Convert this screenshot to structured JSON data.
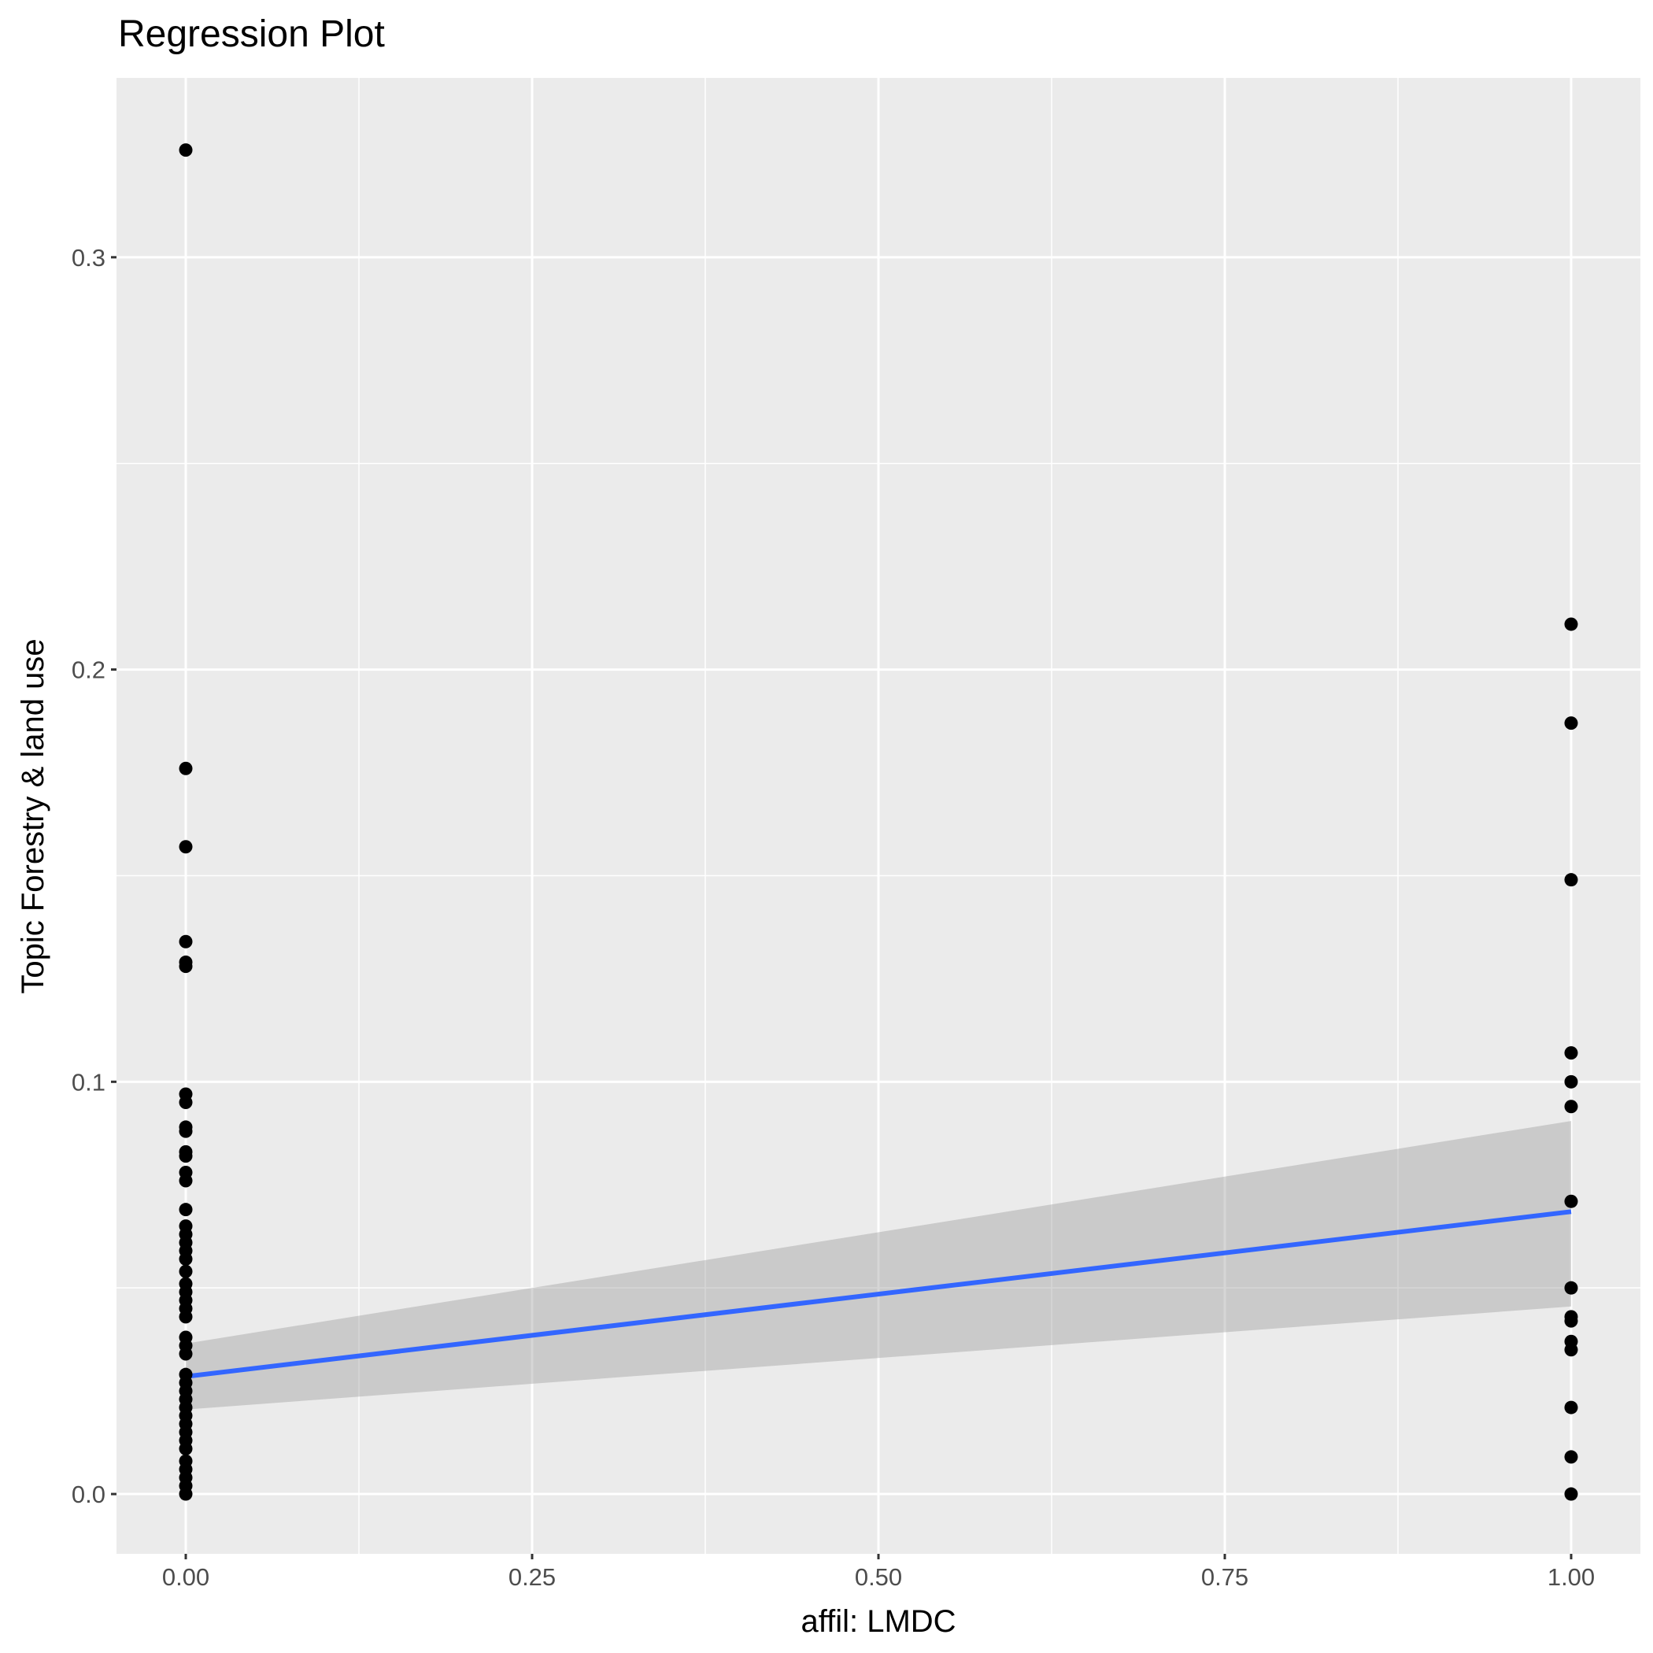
{
  "chart_data": {
    "type": "scatter",
    "title": "Regression Plot",
    "xlabel": "affil: LMDC",
    "ylabel": "Topic Forestry & land use",
    "xlim": [
      -0.05,
      1.05
    ],
    "ylim": [
      -0.0145,
      0.3435
    ],
    "x_ticks": [
      0.0,
      0.25,
      0.5,
      0.75,
      1.0
    ],
    "x_tick_labels": [
      "0.00",
      "0.25",
      "0.50",
      "0.75",
      "1.00"
    ],
    "y_ticks": [
      0.0,
      0.1,
      0.2,
      0.3
    ],
    "y_tick_labels": [
      "0.0",
      "0.1",
      "0.2",
      "0.3"
    ],
    "grid": true,
    "background": "#ebebeb",
    "grid_color": "#ffffff",
    "point_color": "#000000",
    "line_color": "#3366ff",
    "band_color": "#999999",
    "points": [
      {
        "x": 0,
        "y": 0.326
      },
      {
        "x": 0,
        "y": 0.176
      },
      {
        "x": 0,
        "y": 0.157
      },
      {
        "x": 0,
        "y": 0.134
      },
      {
        "x": 0,
        "y": 0.129
      },
      {
        "x": 0,
        "y": 0.128
      },
      {
        "x": 0,
        "y": 0.097
      },
      {
        "x": 0,
        "y": 0.095
      },
      {
        "x": 0,
        "y": 0.089
      },
      {
        "x": 0,
        "y": 0.088
      },
      {
        "x": 0,
        "y": 0.083
      },
      {
        "x": 0,
        "y": 0.082
      },
      {
        "x": 0,
        "y": 0.078
      },
      {
        "x": 0,
        "y": 0.076
      },
      {
        "x": 0,
        "y": 0.069
      },
      {
        "x": 0,
        "y": 0.065
      },
      {
        "x": 0,
        "y": 0.063
      },
      {
        "x": 0,
        "y": 0.061
      },
      {
        "x": 0,
        "y": 0.059
      },
      {
        "x": 0,
        "y": 0.057
      },
      {
        "x": 0,
        "y": 0.054
      },
      {
        "x": 0,
        "y": 0.051
      },
      {
        "x": 0,
        "y": 0.049
      },
      {
        "x": 0,
        "y": 0.047
      },
      {
        "x": 0,
        "y": 0.045
      },
      {
        "x": 0,
        "y": 0.043
      },
      {
        "x": 0,
        "y": 0.038
      },
      {
        "x": 0,
        "y": 0.036
      },
      {
        "x": 0,
        "y": 0.034
      },
      {
        "x": 0,
        "y": 0.029
      },
      {
        "x": 0,
        "y": 0.027
      },
      {
        "x": 0,
        "y": 0.025
      },
      {
        "x": 0,
        "y": 0.023
      },
      {
        "x": 0,
        "y": 0.021
      },
      {
        "x": 0,
        "y": 0.019
      },
      {
        "x": 0,
        "y": 0.017
      },
      {
        "x": 0,
        "y": 0.015
      },
      {
        "x": 0,
        "y": 0.013
      },
      {
        "x": 0,
        "y": 0.011
      },
      {
        "x": 0,
        "y": 0.008
      },
      {
        "x": 0,
        "y": 0.006
      },
      {
        "x": 0,
        "y": 0.004
      },
      {
        "x": 0,
        "y": 0.002
      },
      {
        "x": 0,
        "y": 0.0
      },
      {
        "x": 1,
        "y": 0.211
      },
      {
        "x": 1,
        "y": 0.187
      },
      {
        "x": 1,
        "y": 0.149
      },
      {
        "x": 1,
        "y": 0.107
      },
      {
        "x": 1,
        "y": 0.1
      },
      {
        "x": 1,
        "y": 0.094
      },
      {
        "x": 1,
        "y": 0.071
      },
      {
        "x": 1,
        "y": 0.05
      },
      {
        "x": 1,
        "y": 0.043
      },
      {
        "x": 1,
        "y": 0.042
      },
      {
        "x": 1,
        "y": 0.037
      },
      {
        "x": 1,
        "y": 0.035
      },
      {
        "x": 1,
        "y": 0.021
      },
      {
        "x": 1,
        "y": 0.009
      },
      {
        "x": 1,
        "y": 0.0
      }
    ],
    "fit": {
      "x": [
        0,
        1
      ],
      "y": [
        0.0285,
        0.0685
      ],
      "ci_lower": [
        0.0205,
        0.0455
      ],
      "ci_upper": [
        0.0365,
        0.0905
      ]
    }
  }
}
